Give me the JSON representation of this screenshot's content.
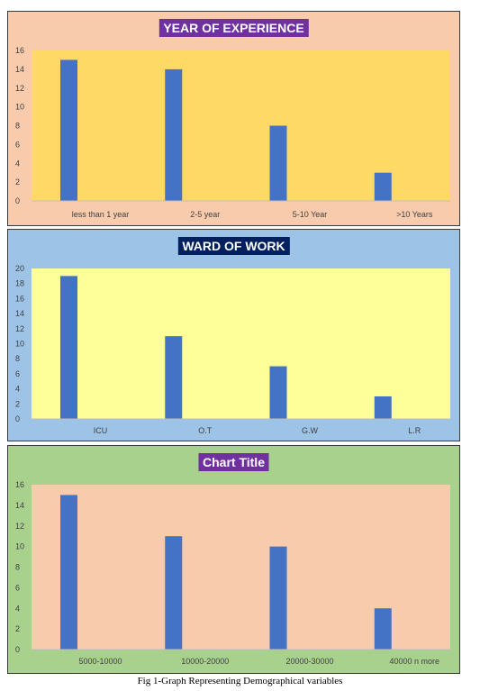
{
  "chart_data": [
    {
      "type": "bar",
      "title": "YEAR OF EXPERIENCE",
      "categories": [
        "less than 1 year",
        "2-5 year",
        "5-10 Year",
        ">10 Years"
      ],
      "values": [
        15,
        14,
        8,
        3
      ],
      "ylim": [
        0,
        16
      ],
      "yticks": [
        0,
        2,
        4,
        6,
        8,
        10,
        12,
        14,
        16
      ],
      "grid": false,
      "colors": {
        "panel": "#f8cbad",
        "plot": "#ffd966",
        "bar": "#4472c4",
        "title_bg": "#7030a0"
      }
    },
    {
      "type": "bar",
      "title": "WARD OF WORK",
      "categories": [
        "ICU",
        "O.T",
        "G.W",
        "L.R"
      ],
      "values": [
        19,
        11,
        7,
        3
      ],
      "ylim": [
        0,
        20
      ],
      "yticks": [
        0,
        2,
        4,
        6,
        8,
        10,
        12,
        14,
        16,
        18,
        20
      ],
      "grid": false,
      "colors": {
        "panel": "#9dc3e6",
        "plot": "#ffff99",
        "bar": "#4472c4",
        "title_bg": "#002060"
      }
    },
    {
      "type": "bar",
      "title": "Chart Title",
      "categories": [
        "5000-10000",
        "10000-20000",
        "20000-30000",
        "40000 n more"
      ],
      "values": [
        15,
        11,
        10,
        4
      ],
      "ylim": [
        0,
        16
      ],
      "yticks": [
        0,
        2,
        4,
        6,
        8,
        10,
        12,
        14,
        16
      ],
      "grid": false,
      "colors": {
        "panel": "#a9d18e",
        "plot": "#f8cbad",
        "bar": "#4472c4",
        "title_bg": "#7030a0"
      }
    }
  ],
  "caption": "Fig 1-Graph Representing Demographical variables"
}
